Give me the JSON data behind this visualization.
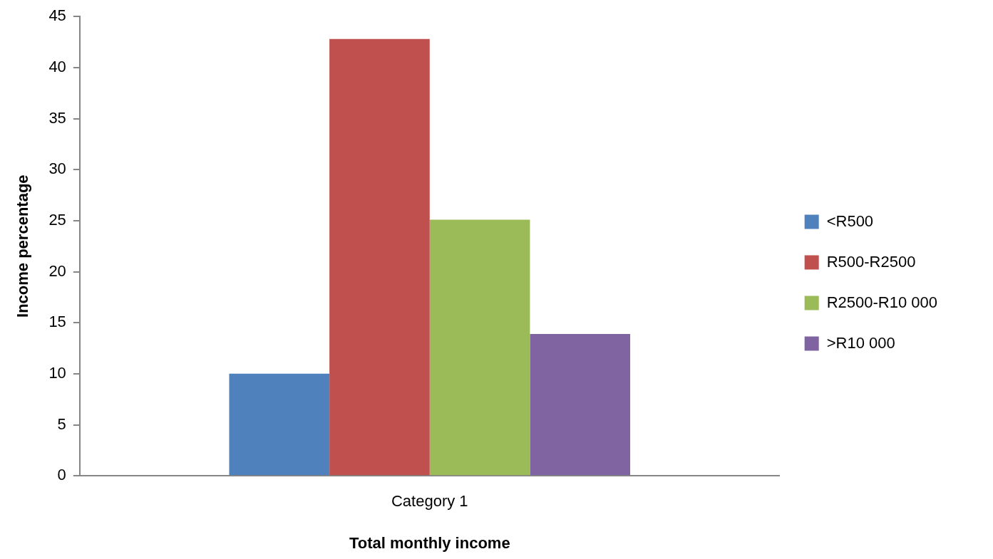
{
  "chart_data": {
    "type": "bar",
    "xlabel": "Total monthly income",
    "ylabel": "Income percentage",
    "categories": [
      "Category 1"
    ],
    "series": [
      {
        "name": "<R500",
        "color": "#4f81bd",
        "values": [
          10.0
        ]
      },
      {
        "name": "R500-R2500",
        "color": "#c0504d",
        "values": [
          42.8
        ]
      },
      {
        "name": "R2500-R10 000",
        "color": "#9bbb59",
        "values": [
          25.1
        ]
      },
      {
        "name": ">R10 000",
        "color": "#8064a2",
        "values": [
          13.9
        ]
      }
    ],
    "ylim": [
      0,
      45
    ],
    "yticks": [
      0,
      5,
      10,
      15,
      20,
      25,
      30,
      35,
      40,
      45
    ],
    "legend": "right"
  }
}
